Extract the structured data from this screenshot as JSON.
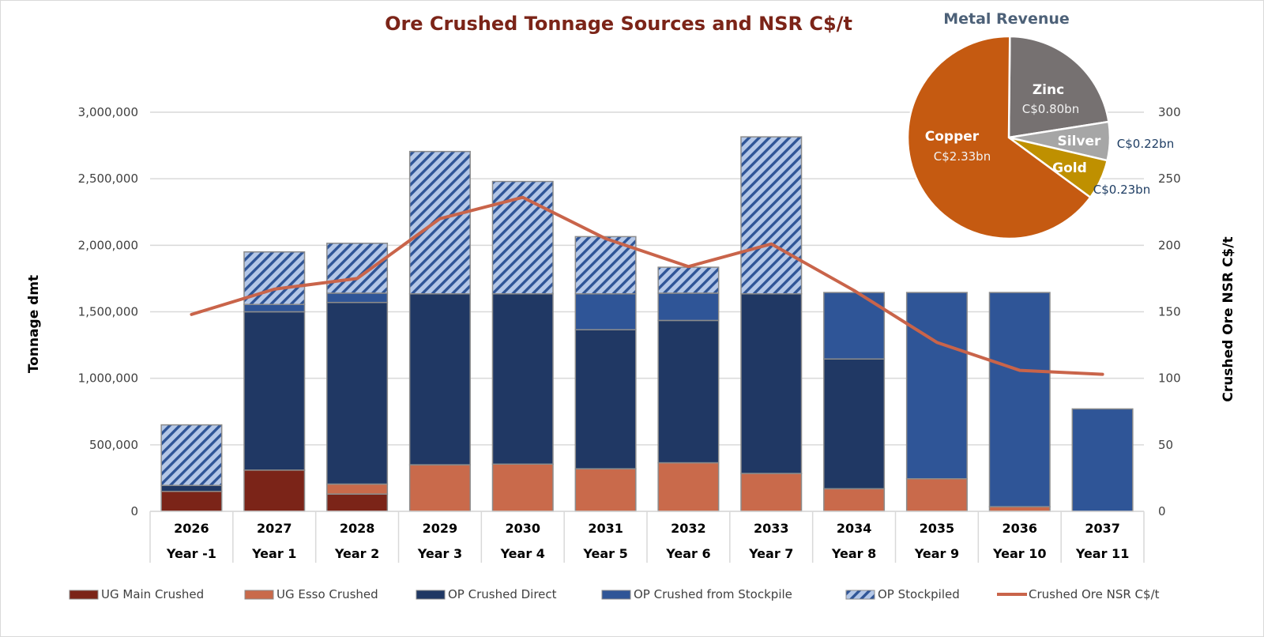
{
  "chart_data": {
    "type": "bar",
    "subtype": "stacked-bar-with-line",
    "title": "Ore Crushed Tonnage Sources and NSR C$/t",
    "ylabel": "Tonnage dmt",
    "y2label": "Crushed Ore NSR C$/t",
    "ylim": [
      0,
      3000000
    ],
    "y2lim": [
      0,
      300
    ],
    "yticks": [
      "0",
      "500,000",
      "1,000,000",
      "1,500,000",
      "2,000,000",
      "2,500,000",
      "3,000,000"
    ],
    "y2ticks": [
      "0",
      "50",
      "100",
      "150",
      "200",
      "250",
      "300"
    ],
    "grid": true,
    "legend_position": "bottom",
    "categories": [
      "2026",
      "2027",
      "2028",
      "2029",
      "2030",
      "2031",
      "2032",
      "2033",
      "2034",
      "2035",
      "2036",
      "2037"
    ],
    "category_sublabels": [
      "Year -1",
      "Year 1",
      "Year 2",
      "Year 3",
      "Year 4",
      "Year 5",
      "Year 6",
      "Year 7",
      "Year 8",
      "Year 9",
      "Year 10",
      "Year 11"
    ],
    "series": [
      {
        "name": "UG Main Crushed",
        "kind": "bar",
        "color": "#7b2418",
        "values": [
          150000,
          310000,
          130000,
          0,
          0,
          0,
          0,
          0,
          0,
          0,
          0,
          0
        ]
      },
      {
        "name": "UG Esso Crushed",
        "kind": "bar",
        "color": "#c96a4b",
        "values": [
          0,
          0,
          75000,
          350000,
          355000,
          320000,
          365000,
          285000,
          170000,
          245000,
          35000,
          0
        ]
      },
      {
        "name": "OP Crushed Direct",
        "kind": "bar",
        "color": "#203864",
        "values": [
          45000,
          1190000,
          1365000,
          1285000,
          1280000,
          1045000,
          1070000,
          1350000,
          975000,
          0,
          0,
          0
        ]
      },
      {
        "name": "OP Crushed from Stockpile",
        "kind": "bar",
        "color": "#2f5597",
        "values": [
          0,
          55000,
          70000,
          0,
          0,
          270000,
          205000,
          0,
          500000,
          1400000,
          1610000,
          770000
        ]
      },
      {
        "name": "OP Stockpiled",
        "kind": "bar",
        "pattern": "diagonal-hatch",
        "color": "#b4c7e7",
        "hatch_color": "#2f5597",
        "values": [
          455000,
          395000,
          375000,
          1070000,
          845000,
          430000,
          195000,
          1180000,
          0,
          0,
          0,
          0
        ]
      },
      {
        "name": "Crushed Ore NSR C$/t",
        "kind": "line",
        "axis": "right",
        "color": "#c9644a",
        "values": [
          148,
          167,
          175,
          220,
          236,
          205,
          184,
          201,
          166,
          127,
          106,
          103
        ]
      }
    ],
    "inset_pie": {
      "title": "Metal Revenue",
      "slices": [
        {
          "name": "Zinc",
          "label": "C$0.80bn",
          "value": 0.8,
          "color": "#767171"
        },
        {
          "name": "Silver",
          "label": "C$0.22bn",
          "value": 0.22,
          "color": "#a6a6a6"
        },
        {
          "name": "Gold",
          "label": "C$0.23bn",
          "value": 0.23,
          "color": "#bf9000"
        },
        {
          "name": "Copper",
          "label": "C$2.33bn",
          "value": 2.33,
          "color": "#c55a11"
        }
      ]
    }
  }
}
